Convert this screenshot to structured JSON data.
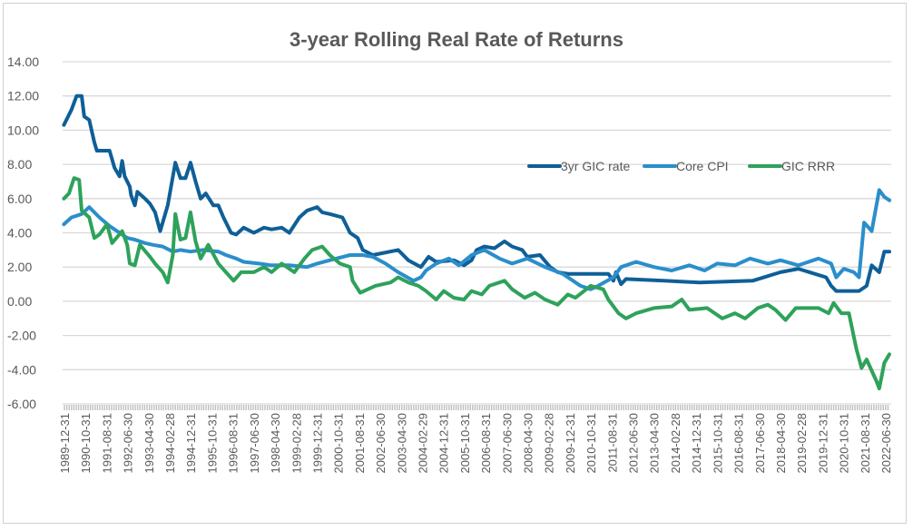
{
  "chart_data": {
    "type": "line",
    "title": "3-year Rolling Real Rate of Returns",
    "xlabel": "",
    "ylabel": "",
    "ylim": [
      -6,
      14
    ],
    "yticks": [
      "14.00",
      "12.00",
      "10.00",
      "8.00",
      "6.00",
      "4.00",
      "2.00",
      "0.00",
      "-2.00",
      "-4.00",
      "-6.00"
    ],
    "xlim": [
      1989.92,
      2022.5
    ],
    "xtick_labels": [
      "1989-12-31",
      "1990-10-31",
      "1991-08-31",
      "1992-06-30",
      "1993-04-30",
      "1994-02-28",
      "1994-12-31",
      "1995-10-31",
      "1996-08-31",
      "1997-06-30",
      "1998-04-30",
      "1999-02-28",
      "1999-12-31",
      "2000-10-31",
      "2001-08-31",
      "2002-06-30",
      "2003-04-30",
      "2004-02-29",
      "2004-12-31",
      "2005-10-31",
      "2006-08-31",
      "2007-06-30",
      "2008-04-30",
      "2009-02-28",
      "2009-12-31",
      "2010-10-31",
      "2011-08-31",
      "2012-06-30",
      "2013-04-30",
      "2014-02-28",
      "2014-12-31",
      "2015-10-31",
      "2016-08-31",
      "2017-06-30",
      "2018-04-30",
      "2019-02-28",
      "2019-12-31",
      "2020-10-31",
      "2021-08-31",
      "2022-06-30"
    ],
    "grid": true,
    "legend_position": "upper-right-inside",
    "series": [
      {
        "name": "3yr GIC rate",
        "color": "#0F5F97",
        "points": [
          [
            1989.9,
            10.3
          ],
          [
            1990.2,
            11.2
          ],
          [
            1990.4,
            12.0
          ],
          [
            1990.6,
            12.0
          ],
          [
            1990.7,
            10.8
          ],
          [
            1990.9,
            10.6
          ],
          [
            1991.1,
            9.3
          ],
          [
            1991.2,
            8.8
          ],
          [
            1991.7,
            8.8
          ],
          [
            1991.9,
            7.8
          ],
          [
            1992.1,
            7.3
          ],
          [
            1992.2,
            8.2
          ],
          [
            1992.3,
            7.3
          ],
          [
            1992.5,
            6.7
          ],
          [
            1992.55,
            6.2
          ],
          [
            1992.7,
            5.6
          ],
          [
            1992.8,
            6.4
          ],
          [
            1993.1,
            6.0
          ],
          [
            1993.3,
            5.7
          ],
          [
            1993.5,
            5.2
          ],
          [
            1993.7,
            4.1
          ],
          [
            1994.0,
            5.6
          ],
          [
            1994.3,
            8.1
          ],
          [
            1994.5,
            7.2
          ],
          [
            1994.7,
            7.2
          ],
          [
            1994.9,
            8.1
          ],
          [
            1995.1,
            7.0
          ],
          [
            1995.3,
            6.0
          ],
          [
            1995.5,
            6.3
          ],
          [
            1995.8,
            5.6
          ],
          [
            1996.0,
            5.6
          ],
          [
            1996.2,
            4.9
          ],
          [
            1996.5,
            4.0
          ],
          [
            1996.7,
            3.9
          ],
          [
            1997.0,
            4.3
          ],
          [
            1997.4,
            4.0
          ],
          [
            1997.8,
            4.3
          ],
          [
            1998.1,
            4.2
          ],
          [
            1998.5,
            4.3
          ],
          [
            1998.8,
            4.0
          ],
          [
            1999.2,
            4.9
          ],
          [
            1999.5,
            5.3
          ],
          [
            1999.9,
            5.5
          ],
          [
            2000.1,
            5.2
          ],
          [
            2000.4,
            5.1
          ],
          [
            2000.9,
            4.9
          ],
          [
            2001.2,
            4.0
          ],
          [
            2001.5,
            3.7
          ],
          [
            2001.7,
            3.0
          ],
          [
            2002.1,
            2.7
          ],
          [
            2003.1,
            3.0
          ],
          [
            2003.5,
            2.4
          ],
          [
            2004.0,
            2.0
          ],
          [
            2004.3,
            2.6
          ],
          [
            2004.6,
            2.3
          ],
          [
            2005.3,
            2.4
          ],
          [
            2005.7,
            2.1
          ],
          [
            2006.0,
            2.4
          ],
          [
            2006.2,
            3.0
          ],
          [
            2006.5,
            3.2
          ],
          [
            2006.9,
            3.1
          ],
          [
            2007.3,
            3.5
          ],
          [
            2007.6,
            3.2
          ],
          [
            2008.0,
            3.0
          ],
          [
            2008.2,
            2.6
          ],
          [
            2008.7,
            2.7
          ],
          [
            2009.1,
            2.0
          ],
          [
            2009.4,
            1.7
          ],
          [
            2009.8,
            1.6
          ],
          [
            2011.4,
            1.6
          ],
          [
            2011.6,
            1.2
          ],
          [
            2011.7,
            1.7
          ],
          [
            2011.9,
            1.0
          ],
          [
            2012.1,
            1.3
          ],
          [
            2013.6,
            1.2
          ],
          [
            2015.0,
            1.1
          ],
          [
            2017.1,
            1.2
          ],
          [
            2018.2,
            1.7
          ],
          [
            2018.9,
            1.9
          ],
          [
            2020.0,
            1.4
          ],
          [
            2020.2,
            0.9
          ],
          [
            2020.4,
            0.6
          ],
          [
            2021.3,
            0.6
          ],
          [
            2021.6,
            0.9
          ],
          [
            2021.8,
            2.1
          ],
          [
            2022.1,
            1.7
          ],
          [
            2022.3,
            2.9
          ],
          [
            2022.5,
            2.9
          ]
        ]
      },
      {
        "name": "Core CPI",
        "color": "#2B8ECB",
        "points": [
          [
            1989.9,
            4.5
          ],
          [
            1990.2,
            4.9
          ],
          [
            1990.6,
            5.1
          ],
          [
            1990.9,
            5.5
          ],
          [
            1991.3,
            4.9
          ],
          [
            1991.7,
            4.4
          ],
          [
            1992.0,
            4.1
          ],
          [
            1992.4,
            3.7
          ],
          [
            1992.7,
            3.6
          ],
          [
            1993.1,
            3.4
          ],
          [
            1993.4,
            3.3
          ],
          [
            1993.8,
            3.2
          ],
          [
            1994.2,
            2.9
          ],
          [
            1994.5,
            3.0
          ],
          [
            1994.9,
            2.9
          ],
          [
            1995.4,
            3.0
          ],
          [
            1996.0,
            2.9
          ],
          [
            1996.3,
            2.7
          ],
          [
            1996.7,
            2.5
          ],
          [
            1997.0,
            2.3
          ],
          [
            1997.6,
            2.2
          ],
          [
            1998.1,
            2.1
          ],
          [
            1998.8,
            2.1
          ],
          [
            1999.5,
            2.0
          ],
          [
            1999.9,
            2.2
          ],
          [
            2000.4,
            2.4
          ],
          [
            2001.2,
            2.7
          ],
          [
            2001.7,
            2.7
          ],
          [
            2002.1,
            2.6
          ],
          [
            2002.6,
            2.2
          ],
          [
            2003.1,
            1.7
          ],
          [
            2003.7,
            1.2
          ],
          [
            2004.0,
            1.4
          ],
          [
            2004.2,
            1.8
          ],
          [
            2004.6,
            2.2
          ],
          [
            2005.1,
            2.5
          ],
          [
            2005.5,
            2.1
          ],
          [
            2006.0,
            2.7
          ],
          [
            2006.5,
            3.0
          ],
          [
            2007.1,
            2.5
          ],
          [
            2007.6,
            2.2
          ],
          [
            2008.2,
            2.5
          ],
          [
            2008.9,
            2.0
          ],
          [
            2009.6,
            1.6
          ],
          [
            2010.3,
            0.9
          ],
          [
            2010.7,
            0.7
          ],
          [
            2011.0,
            0.9
          ],
          [
            2011.6,
            1.4
          ],
          [
            2011.9,
            2.0
          ],
          [
            2012.5,
            2.3
          ],
          [
            2013.2,
            2.0
          ],
          [
            2013.9,
            1.8
          ],
          [
            2014.6,
            2.1
          ],
          [
            2015.2,
            1.8
          ],
          [
            2015.7,
            2.2
          ],
          [
            2016.4,
            2.1
          ],
          [
            2017.0,
            2.5
          ],
          [
            2017.7,
            2.2
          ],
          [
            2018.2,
            2.4
          ],
          [
            2018.9,
            2.1
          ],
          [
            2019.7,
            2.5
          ],
          [
            2020.2,
            2.2
          ],
          [
            2020.4,
            1.4
          ],
          [
            2020.7,
            1.9
          ],
          [
            2021.1,
            1.7
          ],
          [
            2021.3,
            1.4
          ],
          [
            2021.5,
            4.6
          ],
          [
            2021.8,
            4.1
          ],
          [
            2022.1,
            6.5
          ],
          [
            2022.3,
            6.1
          ],
          [
            2022.5,
            5.9
          ]
        ]
      },
      {
        "name": "GIC RRR",
        "color": "#2EA25A",
        "points": [
          [
            1989.9,
            6.0
          ],
          [
            1990.1,
            6.3
          ],
          [
            1990.3,
            7.2
          ],
          [
            1990.5,
            7.1
          ],
          [
            1990.6,
            5.3
          ],
          [
            1990.9,
            4.9
          ],
          [
            1991.1,
            3.7
          ],
          [
            1991.3,
            3.9
          ],
          [
            1991.6,
            4.5
          ],
          [
            1991.8,
            3.4
          ],
          [
            1992.2,
            4.1
          ],
          [
            1992.4,
            3.3
          ],
          [
            1992.5,
            2.2
          ],
          [
            1992.7,
            2.1
          ],
          [
            1992.9,
            3.3
          ],
          [
            1993.3,
            2.6
          ],
          [
            1993.5,
            2.2
          ],
          [
            1993.8,
            1.7
          ],
          [
            1994.0,
            1.1
          ],
          [
            1994.2,
            2.7
          ],
          [
            1994.3,
            5.1
          ],
          [
            1994.5,
            3.6
          ],
          [
            1994.7,
            3.7
          ],
          [
            1994.9,
            5.2
          ],
          [
            1995.1,
            3.5
          ],
          [
            1995.3,
            2.5
          ],
          [
            1995.6,
            3.3
          ],
          [
            1996.0,
            2.2
          ],
          [
            1996.3,
            1.7
          ],
          [
            1996.6,
            1.2
          ],
          [
            1996.9,
            1.7
          ],
          [
            1997.4,
            1.7
          ],
          [
            1997.8,
            2.0
          ],
          [
            1998.1,
            1.7
          ],
          [
            1998.5,
            2.2
          ],
          [
            1999.0,
            1.7
          ],
          [
            1999.4,
            2.5
          ],
          [
            1999.7,
            3.0
          ],
          [
            2000.1,
            3.2
          ],
          [
            2000.4,
            2.7
          ],
          [
            2000.8,
            2.2
          ],
          [
            2001.2,
            2.0
          ],
          [
            2001.3,
            1.2
          ],
          [
            2001.6,
            0.5
          ],
          [
            2002.2,
            0.9
          ],
          [
            2002.8,
            1.1
          ],
          [
            2003.1,
            1.4
          ],
          [
            2003.5,
            1.1
          ],
          [
            2003.9,
            0.9
          ],
          [
            2004.2,
            0.6
          ],
          [
            2004.6,
            0.1
          ],
          [
            2004.9,
            0.6
          ],
          [
            2005.3,
            0.2
          ],
          [
            2005.7,
            0.1
          ],
          [
            2006.0,
            0.6
          ],
          [
            2006.4,
            0.4
          ],
          [
            2006.7,
            0.9
          ],
          [
            2007.3,
            1.2
          ],
          [
            2007.6,
            0.7
          ],
          [
            2008.1,
            0.2
          ],
          [
            2008.5,
            0.5
          ],
          [
            2008.9,
            0.1
          ],
          [
            2009.4,
            -0.2
          ],
          [
            2009.8,
            0.4
          ],
          [
            2010.1,
            0.2
          ],
          [
            2010.7,
            0.9
          ],
          [
            2011.2,
            0.7
          ],
          [
            2011.4,
            0.1
          ],
          [
            2011.8,
            -0.7
          ],
          [
            2012.1,
            -1.0
          ],
          [
            2012.5,
            -0.7
          ],
          [
            2013.2,
            -0.4
          ],
          [
            2013.9,
            -0.3
          ],
          [
            2014.3,
            0.1
          ],
          [
            2014.6,
            -0.5
          ],
          [
            2015.3,
            -0.4
          ],
          [
            2015.9,
            -1.0
          ],
          [
            2016.4,
            -0.7
          ],
          [
            2016.8,
            -1.0
          ],
          [
            2017.3,
            -0.4
          ],
          [
            2017.7,
            -0.2
          ],
          [
            2018.0,
            -0.5
          ],
          [
            2018.4,
            -1.1
          ],
          [
            2018.8,
            -0.4
          ],
          [
            2019.7,
            -0.4
          ],
          [
            2020.1,
            -0.7
          ],
          [
            2020.3,
            -0.1
          ],
          [
            2020.6,
            -0.7
          ],
          [
            2020.9,
            -0.7
          ],
          [
            2021.2,
            -2.8
          ],
          [
            2021.4,
            -3.9
          ],
          [
            2021.6,
            -3.4
          ],
          [
            2022.0,
            -4.7
          ],
          [
            2022.1,
            -5.1
          ],
          [
            2022.3,
            -3.6
          ],
          [
            2022.5,
            -3.1
          ]
        ]
      }
    ]
  }
}
